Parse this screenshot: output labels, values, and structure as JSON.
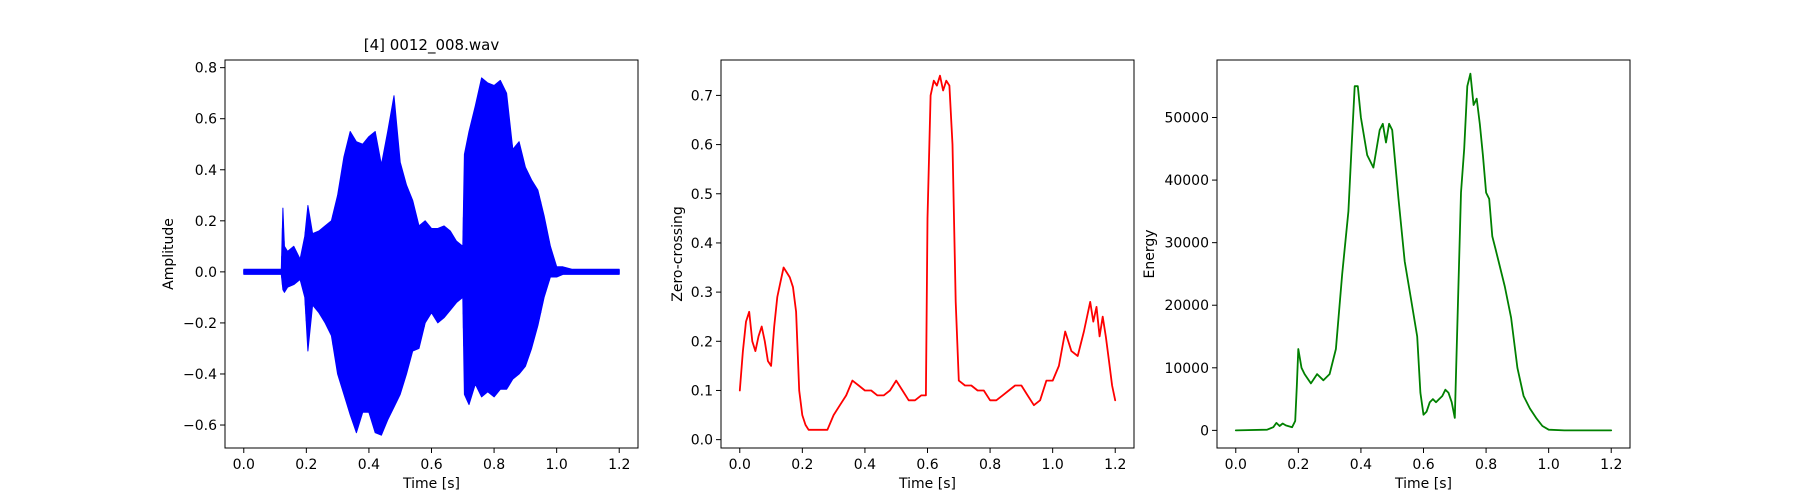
{
  "chart_data": [
    {
      "type": "line",
      "title": "[4] 0012_008.wav",
      "xlabel": "Time [s]",
      "ylabel": "Amplitude",
      "xlim": [
        -0.06,
        1.26
      ],
      "ylim": [
        -0.69,
        0.83
      ],
      "xticks": [
        "0.0",
        "0.2",
        "0.4",
        "0.6",
        "0.8",
        "1.0",
        "1.2"
      ],
      "yticks": [
        "−0.6",
        "−0.4",
        "−0.2",
        "0.0",
        "0.2",
        "0.4",
        "0.6",
        "0.8"
      ],
      "grid": false,
      "series": [
        {
          "color": "#0000ff",
          "style": "waveform",
          "x": [
            0.0,
            0.06,
            0.12,
            0.125,
            0.13,
            0.14,
            0.16,
            0.18,
            0.195,
            0.205,
            0.22,
            0.24,
            0.26,
            0.28,
            0.3,
            0.32,
            0.34,
            0.36,
            0.38,
            0.4,
            0.42,
            0.44,
            0.46,
            0.48,
            0.5,
            0.52,
            0.54,
            0.56,
            0.58,
            0.6,
            0.62,
            0.64,
            0.66,
            0.68,
            0.7,
            0.705,
            0.72,
            0.74,
            0.76,
            0.78,
            0.8,
            0.82,
            0.84,
            0.86,
            0.88,
            0.9,
            0.92,
            0.94,
            0.96,
            0.98,
            1.0,
            1.02,
            1.05,
            1.1,
            1.2
          ],
          "upper": [
            0.01,
            0.01,
            0.01,
            0.25,
            0.1,
            0.08,
            0.1,
            0.05,
            0.14,
            0.26,
            0.15,
            0.16,
            0.18,
            0.2,
            0.3,
            0.45,
            0.55,
            0.51,
            0.5,
            0.53,
            0.55,
            0.42,
            0.55,
            0.69,
            0.43,
            0.34,
            0.28,
            0.18,
            0.2,
            0.17,
            0.17,
            0.18,
            0.16,
            0.12,
            0.1,
            0.46,
            0.55,
            0.65,
            0.76,
            0.74,
            0.73,
            0.75,
            0.7,
            0.48,
            0.51,
            0.41,
            0.36,
            0.32,
            0.22,
            0.1,
            0.02,
            0.02,
            0.01,
            0.01,
            0.01
          ],
          "lower": [
            -0.01,
            -0.01,
            -0.01,
            -0.07,
            -0.08,
            -0.06,
            -0.05,
            -0.03,
            -0.1,
            -0.31,
            -0.13,
            -0.16,
            -0.2,
            -0.25,
            -0.4,
            -0.48,
            -0.56,
            -0.63,
            -0.55,
            -0.55,
            -0.63,
            -0.64,
            -0.58,
            -0.53,
            -0.48,
            -0.4,
            -0.31,
            -0.3,
            -0.2,
            -0.16,
            -0.2,
            -0.18,
            -0.15,
            -0.12,
            -0.1,
            -0.48,
            -0.52,
            -0.44,
            -0.49,
            -0.47,
            -0.49,
            -0.46,
            -0.46,
            -0.42,
            -0.4,
            -0.37,
            -0.3,
            -0.21,
            -0.1,
            -0.02,
            -0.02,
            -0.01,
            -0.01,
            -0.01,
            -0.01
          ]
        }
      ]
    },
    {
      "type": "line",
      "title": "",
      "xlabel": "Time [s]",
      "ylabel": "Zero-crossing",
      "xlim": [
        -0.06,
        1.26
      ],
      "ylim": [
        -0.017,
        0.772
      ],
      "xticks": [
        "0.0",
        "0.2",
        "0.4",
        "0.6",
        "0.8",
        "1.0",
        "1.2"
      ],
      "yticks": [
        "0.0",
        "0.1",
        "0.2",
        "0.3",
        "0.4",
        "0.5",
        "0.6",
        "0.7"
      ],
      "grid": false,
      "series": [
        {
          "color": "#ff0000",
          "x": [
            0.0,
            0.01,
            0.02,
            0.03,
            0.04,
            0.05,
            0.06,
            0.07,
            0.08,
            0.09,
            0.1,
            0.11,
            0.12,
            0.13,
            0.14,
            0.15,
            0.16,
            0.17,
            0.18,
            0.19,
            0.2,
            0.21,
            0.22,
            0.25,
            0.28,
            0.3,
            0.32,
            0.34,
            0.36,
            0.38,
            0.4,
            0.42,
            0.44,
            0.46,
            0.48,
            0.5,
            0.52,
            0.54,
            0.56,
            0.58,
            0.595,
            0.6,
            0.61,
            0.62,
            0.63,
            0.64,
            0.65,
            0.66,
            0.67,
            0.68,
            0.69,
            0.7,
            0.72,
            0.74,
            0.76,
            0.78,
            0.8,
            0.82,
            0.84,
            0.86,
            0.88,
            0.9,
            0.92,
            0.94,
            0.96,
            0.98,
            1.0,
            1.02,
            1.04,
            1.06,
            1.08,
            1.1,
            1.12,
            1.13,
            1.14,
            1.15,
            1.16,
            1.17,
            1.18,
            1.19,
            1.2
          ],
          "y": [
            0.1,
            0.18,
            0.24,
            0.26,
            0.2,
            0.18,
            0.21,
            0.23,
            0.2,
            0.16,
            0.15,
            0.23,
            0.29,
            0.32,
            0.35,
            0.34,
            0.33,
            0.31,
            0.26,
            0.1,
            0.05,
            0.03,
            0.02,
            0.02,
            0.02,
            0.05,
            0.07,
            0.09,
            0.12,
            0.11,
            0.1,
            0.1,
            0.09,
            0.09,
            0.1,
            0.12,
            0.1,
            0.08,
            0.08,
            0.09,
            0.09,
            0.45,
            0.7,
            0.73,
            0.72,
            0.74,
            0.71,
            0.73,
            0.72,
            0.6,
            0.28,
            0.12,
            0.11,
            0.11,
            0.1,
            0.1,
            0.08,
            0.08,
            0.09,
            0.1,
            0.11,
            0.11,
            0.09,
            0.07,
            0.08,
            0.12,
            0.12,
            0.15,
            0.22,
            0.18,
            0.17,
            0.22,
            0.28,
            0.24,
            0.27,
            0.21,
            0.25,
            0.21,
            0.16,
            0.11,
            0.08
          ]
        }
      ]
    },
    {
      "type": "line",
      "title": "",
      "xlabel": "Time [s]",
      "ylabel": "Energy",
      "xlim": [
        -0.06,
        1.26
      ],
      "ylim": [
        -2817,
        59191
      ],
      "xticks": [
        "0.0",
        "0.2",
        "0.4",
        "0.6",
        "0.8",
        "1.0",
        "1.2"
      ],
      "yticks": [
        "0",
        "10000",
        "20000",
        "30000",
        "40000",
        "50000"
      ],
      "grid": false,
      "series": [
        {
          "color": "#008000",
          "x": [
            0.0,
            0.1,
            0.12,
            0.13,
            0.14,
            0.15,
            0.16,
            0.18,
            0.19,
            0.195,
            0.2,
            0.21,
            0.22,
            0.24,
            0.26,
            0.28,
            0.3,
            0.32,
            0.34,
            0.36,
            0.37,
            0.38,
            0.39,
            0.4,
            0.42,
            0.44,
            0.46,
            0.47,
            0.48,
            0.49,
            0.5,
            0.52,
            0.54,
            0.56,
            0.58,
            0.59,
            0.6,
            0.61,
            0.62,
            0.63,
            0.64,
            0.65,
            0.66,
            0.67,
            0.68,
            0.69,
            0.7,
            0.71,
            0.72,
            0.73,
            0.74,
            0.75,
            0.76,
            0.77,
            0.78,
            0.79,
            0.8,
            0.81,
            0.82,
            0.83,
            0.84,
            0.86,
            0.88,
            0.9,
            0.92,
            0.94,
            0.96,
            0.98,
            1.0,
            1.05,
            1.1,
            1.2
          ],
          "y": [
            0,
            100,
            500,
            1200,
            700,
            1100,
            800,
            500,
            1500,
            7000,
            13000,
            10000,
            9000,
            7500,
            9000,
            8000,
            9000,
            13000,
            25000,
            35000,
            45000,
            55000,
            55000,
            50000,
            44000,
            42000,
            48000,
            49000,
            46000,
            49000,
            48000,
            37000,
            27000,
            21000,
            15000,
            6000,
            2500,
            3000,
            4500,
            5000,
            4500,
            5000,
            5500,
            6500,
            6000,
            4500,
            2000,
            20000,
            38000,
            45000,
            55000,
            57000,
            52000,
            53000,
            49000,
            44000,
            38000,
            37000,
            31000,
            29000,
            27000,
            23000,
            18000,
            10000,
            5500,
            3500,
            2000,
            700,
            100,
            0,
            0,
            0
          ]
        }
      ]
    }
  ]
}
